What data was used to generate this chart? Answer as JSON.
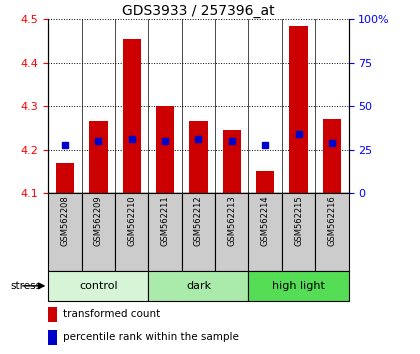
{
  "title": "GDS3933 / 257396_at",
  "samples": [
    "GSM562208",
    "GSM562209",
    "GSM562210",
    "GSM562211",
    "GSM562212",
    "GSM562213",
    "GSM562214",
    "GSM562215",
    "GSM562216"
  ],
  "bar_values": [
    4.17,
    4.265,
    4.455,
    4.3,
    4.265,
    4.245,
    4.15,
    4.485,
    4.27
  ],
  "bar_base": 4.1,
  "percentile_values": [
    4.21,
    4.22,
    4.225,
    4.22,
    4.225,
    4.22,
    4.21,
    4.235,
    4.215
  ],
  "ylim": [
    4.1,
    4.5
  ],
  "yticks_left": [
    4.1,
    4.2,
    4.3,
    4.4,
    4.5
  ],
  "yticks_right": [
    0,
    25,
    50,
    75,
    100
  ],
  "yticks_right_labels": [
    "0",
    "25",
    "50",
    "75",
    "100%"
  ],
  "groups": [
    {
      "label": "control",
      "indices": [
        0,
        1,
        2
      ],
      "color": "#d6f5d6"
    },
    {
      "label": "dark",
      "indices": [
        3,
        4,
        5
      ],
      "color": "#aaeaaa"
    },
    {
      "label": "high light",
      "indices": [
        6,
        7,
        8
      ],
      "color": "#55dd55"
    }
  ],
  "stress_label": "stress",
  "bar_color": "#cc0000",
  "percentile_color": "#0000cc",
  "tick_area_color": "#cccccc",
  "legend_items": [
    {
      "label": "transformed count",
      "color": "#cc0000"
    },
    {
      "label": "percentile rank within the sample",
      "color": "#0000cc"
    }
  ],
  "fig_width": 4.2,
  "fig_height": 3.54,
  "dpi": 100
}
